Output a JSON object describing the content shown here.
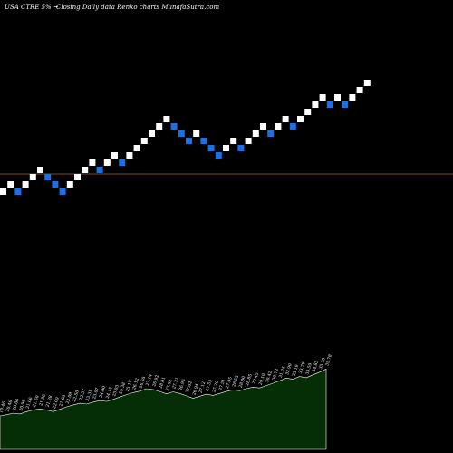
{
  "header": {
    "ticker_text": "USA CTRE 5% ~",
    "chart_desc": "Closing Daily data  Renko  charts MunafaSutra.com"
  },
  "colors": {
    "background": "#000000",
    "up_brick": "#ffffff",
    "down_brick": "#1e6fe0",
    "reference_line": "#8a4a12",
    "volume_fill": "#062e06",
    "volume_stroke": "#ffffff"
  },
  "chart_data": [
    {
      "type": "renko",
      "title": "",
      "brick_size_pct": 5,
      "reference_line": {
        "y_level": 22.6,
        "color": "#8a4a12"
      },
      "bricks": [
        {
          "dir": "up",
          "level": 20.6
        },
        {
          "dir": "up",
          "level": 21.6
        },
        {
          "dir": "down",
          "level": 20.6
        },
        {
          "dir": "up",
          "level": 21.6
        },
        {
          "dir": "up",
          "level": 22.6
        },
        {
          "dir": "up",
          "level": 23.6
        },
        {
          "dir": "down",
          "level": 22.6
        },
        {
          "dir": "down",
          "level": 21.6
        },
        {
          "dir": "down",
          "level": 20.6
        },
        {
          "dir": "up",
          "level": 21.6
        },
        {
          "dir": "up",
          "level": 22.6
        },
        {
          "dir": "up",
          "level": 23.6
        },
        {
          "dir": "up",
          "level": 24.6
        },
        {
          "dir": "down",
          "level": 23.6
        },
        {
          "dir": "up",
          "level": 24.6
        },
        {
          "dir": "up",
          "level": 25.6
        },
        {
          "dir": "down",
          "level": 24.6
        },
        {
          "dir": "up",
          "level": 25.6
        },
        {
          "dir": "up",
          "level": 26.6
        },
        {
          "dir": "up",
          "level": 27.6
        },
        {
          "dir": "up",
          "level": 28.6
        },
        {
          "dir": "up",
          "level": 29.6
        },
        {
          "dir": "up",
          "level": 30.6
        },
        {
          "dir": "down",
          "level": 29.6
        },
        {
          "dir": "down",
          "level": 28.6
        },
        {
          "dir": "down",
          "level": 27.6
        },
        {
          "dir": "up",
          "level": 28.6
        },
        {
          "dir": "down",
          "level": 27.6
        },
        {
          "dir": "down",
          "level": 26.6
        },
        {
          "dir": "down",
          "level": 25.6
        },
        {
          "dir": "up",
          "level": 26.6
        },
        {
          "dir": "up",
          "level": 27.6
        },
        {
          "dir": "down",
          "level": 26.6
        },
        {
          "dir": "up",
          "level": 27.6
        },
        {
          "dir": "up",
          "level": 28.6
        },
        {
          "dir": "up",
          "level": 29.6
        },
        {
          "dir": "down",
          "level": 28.6
        },
        {
          "dir": "up",
          "level": 29.6
        },
        {
          "dir": "up",
          "level": 30.6
        },
        {
          "dir": "down",
          "level": 29.6
        },
        {
          "dir": "up",
          "level": 30.6
        },
        {
          "dir": "up",
          "level": 31.6
        },
        {
          "dir": "up",
          "level": 32.6
        },
        {
          "dir": "up",
          "level": 33.6
        },
        {
          "dir": "down",
          "level": 32.6
        },
        {
          "dir": "up",
          "level": 33.6
        },
        {
          "dir": "down",
          "level": 32.6
        },
        {
          "dir": "up",
          "level": 33.6
        },
        {
          "dir": "up",
          "level": 34.6
        },
        {
          "dir": "up",
          "level": 35.6
        }
      ]
    },
    {
      "type": "area",
      "title": "",
      "values": [
        23.5,
        23.8,
        24.2,
        24.0,
        24.6,
        25.0,
        25.3,
        25.0,
        24.6,
        25.2,
        25.8,
        26.3,
        26.7,
        26.5,
        27.0,
        27.4,
        27.2,
        27.7,
        28.3,
        28.9,
        29.4,
        29.8,
        30.4,
        30.2,
        29.7,
        29.1,
        29.6,
        29.2,
        28.6,
        28.0,
        28.5,
        29.0,
        28.7,
        29.2,
        29.7,
        30.1,
        29.9,
        30.4,
        30.8,
        30.6,
        31.2,
        31.8,
        32.4,
        33.1,
        32.8,
        33.5,
        33.2,
        33.9,
        34.6,
        35.4
      ],
      "labels": [
        "19.46",
        "20.46",
        "20.06",
        "20.96",
        "21.06",
        "21.60",
        "21.86",
        "21.28",
        "22.09",
        "21.60",
        "22.09",
        "22.50",
        "22.57",
        "23.31",
        "23.07",
        "24.00",
        "24.15",
        "25.03",
        "25.38",
        "25.17",
        "26.12",
        "26.60",
        "27.14",
        "26.92",
        "28.01",
        "27.92",
        "27.31",
        "26.96",
        "27.02",
        "26.94",
        "27.12",
        "27.53",
        "27.20",
        "27.51",
        "27.95",
        "28.53",
        "28.80",
        "28.85",
        "29.45",
        "29.10",
        "30.42",
        "30.72",
        "31.24",
        "32.90",
        "33.19",
        "33.79",
        "33.59",
        "34.85",
        "35.30",
        "35.78"
      ],
      "ylim": [
        15,
        38
      ]
    }
  ]
}
